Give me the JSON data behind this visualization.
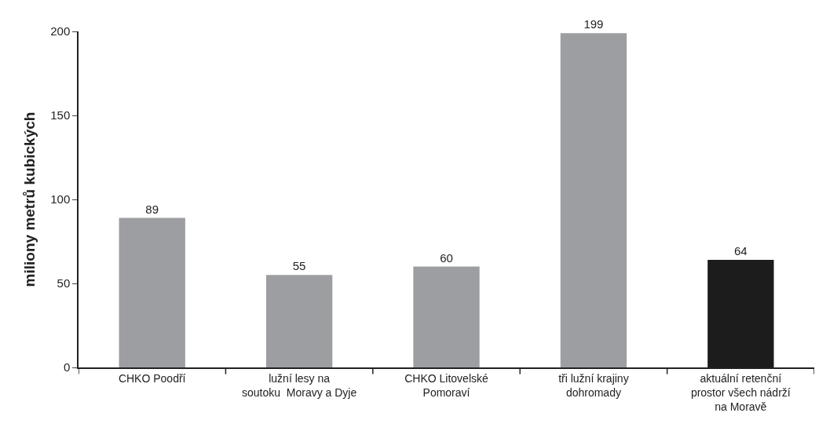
{
  "chart_data": {
    "type": "bar",
    "ylabel": "miliony metrů kubických",
    "categories": [
      "CHKO Poodří",
      "lužní lesy na\nsoutoku  Moravy a Dyje",
      "CHKO Litovelské\nPomoraví",
      "tři lužní krajiny\ndohromady",
      "aktuální retenční\nprostor všech nádrží\nna Moravě"
    ],
    "values": [
      89,
      55,
      60,
      199,
      64
    ],
    "colors": [
      "#9c9ea1",
      "#9c9ea1",
      "#9c9ea1",
      "#9c9ea1",
      "#1c1c1c"
    ],
    "ylim": [
      0,
      200
    ],
    "yticks": [
      0,
      50,
      100,
      150,
      200
    ],
    "data_labels": true
  }
}
